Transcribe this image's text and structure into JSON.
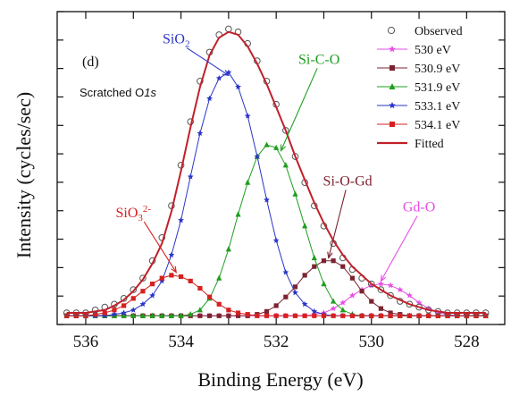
{
  "chart_data": {
    "type": "line",
    "panel_label": "(d)",
    "panel_subtitle": {
      "main": "Scratched O",
      "italic": "1s"
    },
    "xlabel": "Binding Energy (eV)",
    "ylabel": "Intensity (cycles/sec)",
    "xlim": [
      536.6,
      527.2
    ],
    "ylim": [
      -0.03,
      1.05
    ],
    "x_reversed": true,
    "xticks": [
      536,
      535,
      534,
      533,
      532,
      531,
      530,
      529,
      528
    ],
    "xtick_labels": [
      "536",
      "",
      "534",
      "",
      "532",
      "",
      "530",
      "",
      "528"
    ],
    "grid": false,
    "legend_position": "top-right",
    "colors": {
      "observed": "#555555",
      "530": "#e64ee6",
      "530_9": "#7b2330",
      "531_9": "#1f9e1f",
      "533_1": "#2a35c8",
      "534_1": "#d62020",
      "fitted": "#c0202a"
    },
    "observed": {
      "name": "Observed",
      "x": [
        536.4,
        536.2,
        536.0,
        535.8,
        535.6,
        535.4,
        535.2,
        535.0,
        534.8,
        534.6,
        534.4,
        534.2,
        534.0,
        533.8,
        533.6,
        533.4,
        533.2,
        533.0,
        532.8,
        532.6,
        532.4,
        532.2,
        532.0,
        531.8,
        531.6,
        531.4,
        531.2,
        531.0,
        530.8,
        530.6,
        530.4,
        530.2,
        530.0,
        529.8,
        529.6,
        529.4,
        529.2,
        529.0,
        528.8,
        528.6,
        528.4,
        528.2,
        528.0,
        527.8,
        527.6
      ],
      "y": [
        0.01,
        0.01,
        0.01,
        0.02,
        0.03,
        0.04,
        0.06,
        0.09,
        0.13,
        0.19,
        0.27,
        0.38,
        0.52,
        0.67,
        0.81,
        0.91,
        0.97,
        0.99,
        0.98,
        0.94,
        0.88,
        0.81,
        0.73,
        0.64,
        0.55,
        0.46,
        0.38,
        0.31,
        0.25,
        0.2,
        0.16,
        0.13,
        0.11,
        0.09,
        0.07,
        0.05,
        0.04,
        0.03,
        0.02,
        0.015,
        0.01,
        0.01,
        0.01,
        0.01,
        0.01
      ]
    },
    "series": [
      {
        "name": "530 eV",
        "marker": "star",
        "x": [
          536.4,
          536.2,
          536.0,
          535.8,
          535.6,
          535.4,
          535.2,
          535.0,
          534.8,
          534.6,
          534.4,
          534.2,
          534.0,
          533.8,
          533.6,
          533.4,
          533.2,
          533.0,
          532.8,
          532.6,
          532.4,
          532.2,
          532.0,
          531.8,
          531.6,
          531.4,
          531.2,
          531.0,
          530.8,
          530.6,
          530.4,
          530.2,
          530.0,
          529.8,
          529.6,
          529.4,
          529.2,
          529.0,
          528.8,
          528.6,
          528.4,
          528.2,
          528.0,
          527.8,
          527.6
        ],
        "y": [
          0.0,
          0.0,
          0.0,
          0.0,
          0.0,
          0.0,
          0.0,
          0.0,
          0.0,
          0.0,
          0.0,
          0.0,
          0.0,
          0.0,
          0.0,
          0.0,
          0.0,
          0.0,
          0.0,
          0.0,
          0.0,
          0.0,
          0.0,
          0.0,
          0.0,
          0.0,
          0.005,
          0.01,
          0.025,
          0.045,
          0.07,
          0.09,
          0.105,
          0.11,
          0.105,
          0.09,
          0.07,
          0.045,
          0.025,
          0.01,
          0.005,
          0.0,
          0.0,
          0.0,
          0.0
        ]
      },
      {
        "name": "530.9 eV",
        "marker": "square",
        "x": [
          536.4,
          536.2,
          536.0,
          535.8,
          535.6,
          535.4,
          535.2,
          535.0,
          534.8,
          534.6,
          534.4,
          534.2,
          534.0,
          533.8,
          533.6,
          533.4,
          533.2,
          533.0,
          532.8,
          532.6,
          532.4,
          532.2,
          532.0,
          531.8,
          531.6,
          531.4,
          531.2,
          531.0,
          530.8,
          530.6,
          530.4,
          530.2,
          530.0,
          529.8,
          529.6,
          529.4,
          529.2,
          529.0,
          528.8,
          528.6,
          528.4,
          528.2,
          528.0,
          527.8,
          527.6
        ],
        "y": [
          0.0,
          0.0,
          0.0,
          0.0,
          0.0,
          0.0,
          0.0,
          0.0,
          0.0,
          0.0,
          0.0,
          0.0,
          0.0,
          0.0,
          0.0,
          0.0,
          0.0,
          0.0,
          0.0,
          0.0,
          0.005,
          0.015,
          0.035,
          0.065,
          0.1,
          0.14,
          0.17,
          0.19,
          0.19,
          0.17,
          0.13,
          0.085,
          0.05,
          0.025,
          0.01,
          0.005,
          0.0,
          0.0,
          0.0,
          0.0,
          0.0,
          0.0,
          0.0,
          0.0,
          0.0
        ]
      },
      {
        "name": "531.9 eV",
        "marker": "triangle",
        "x": [
          536.4,
          536.2,
          536.0,
          535.8,
          535.6,
          535.4,
          535.2,
          535.0,
          534.8,
          534.6,
          534.4,
          534.2,
          534.0,
          533.8,
          533.6,
          533.4,
          533.2,
          533.0,
          532.8,
          532.6,
          532.4,
          532.2,
          532.0,
          531.8,
          531.6,
          531.4,
          531.2,
          531.0,
          530.8,
          530.6,
          530.4,
          530.2,
          530.0,
          529.8,
          529.6,
          529.4,
          529.2,
          529.0,
          528.8,
          528.6,
          528.4,
          528.2,
          528.0,
          527.8,
          527.6
        ],
        "y": [
          0.0,
          0.0,
          0.0,
          0.0,
          0.0,
          0.0,
          0.0,
          0.0,
          0.0,
          0.0,
          0.0,
          0.0,
          0.0,
          0.005,
          0.02,
          0.06,
          0.13,
          0.23,
          0.35,
          0.46,
          0.55,
          0.59,
          0.58,
          0.52,
          0.42,
          0.31,
          0.2,
          0.11,
          0.05,
          0.02,
          0.005,
          0.0,
          0.0,
          0.0,
          0.0,
          0.0,
          0.0,
          0.0,
          0.0,
          0.0,
          0.0,
          0.0,
          0.0,
          0.0,
          0.0
        ]
      },
      {
        "name": "533.1 eV",
        "marker": "star",
        "x": [
          536.4,
          536.2,
          536.0,
          535.8,
          535.6,
          535.4,
          535.2,
          535.0,
          534.8,
          534.6,
          534.4,
          534.2,
          534.0,
          533.8,
          533.6,
          533.4,
          533.2,
          533.0,
          532.8,
          532.6,
          532.4,
          532.2,
          532.0,
          531.8,
          531.6,
          531.4,
          531.2,
          531.0,
          530.8,
          530.6,
          530.4,
          530.2,
          530.0,
          529.8,
          529.6,
          529.4,
          529.2,
          529.0,
          528.8,
          528.6,
          528.4,
          528.2,
          528.0,
          527.8,
          527.6
        ],
        "y": [
          0.0,
          0.0,
          0.0,
          0.0,
          0.0,
          0.005,
          0.01,
          0.02,
          0.04,
          0.07,
          0.12,
          0.21,
          0.33,
          0.48,
          0.63,
          0.75,
          0.82,
          0.84,
          0.79,
          0.69,
          0.55,
          0.4,
          0.26,
          0.15,
          0.08,
          0.04,
          0.015,
          0.005,
          0.0,
          0.0,
          0.0,
          0.0,
          0.0,
          0.0,
          0.0,
          0.0,
          0.0,
          0.0,
          0.0,
          0.0,
          0.0,
          0.0,
          0.0,
          0.0,
          0.0
        ]
      },
      {
        "name": "534.1 eV",
        "marker": "square",
        "x": [
          536.4,
          536.2,
          536.0,
          535.8,
          535.6,
          535.4,
          535.2,
          535.0,
          534.8,
          534.6,
          534.4,
          534.2,
          534.0,
          533.8,
          533.6,
          533.4,
          533.2,
          533.0,
          532.8,
          532.6,
          532.4,
          532.2,
          532.0,
          531.8,
          531.6,
          531.4,
          531.2,
          531.0,
          530.8,
          530.6,
          530.4,
          530.2,
          530.0,
          529.8,
          529.6,
          529.4,
          529.2,
          529.0,
          528.8,
          528.6,
          528.4,
          528.2,
          528.0,
          527.8,
          527.6
        ],
        "y": [
          0.0,
          0.0,
          0.0,
          0.005,
          0.01,
          0.02,
          0.035,
          0.06,
          0.085,
          0.11,
          0.13,
          0.14,
          0.135,
          0.12,
          0.095,
          0.065,
          0.04,
          0.02,
          0.01,
          0.005,
          0.0,
          0.0,
          0.0,
          0.0,
          0.0,
          0.0,
          0.0,
          0.0,
          0.0,
          0.0,
          0.0,
          0.0,
          0.0,
          0.0,
          0.0,
          0.0,
          0.0,
          0.0,
          0.0,
          0.0,
          0.0,
          0.0,
          0.0,
          0.0,
          0.0
        ]
      }
    ],
    "fitted": {
      "name": "Fitted",
      "x": [
        536.4,
        536.2,
        536.0,
        535.8,
        535.6,
        535.4,
        535.2,
        535.0,
        534.8,
        534.6,
        534.4,
        534.2,
        534.0,
        533.8,
        533.6,
        533.4,
        533.2,
        533.0,
        532.8,
        532.6,
        532.4,
        532.2,
        532.0,
        531.8,
        531.6,
        531.4,
        531.2,
        531.0,
        530.8,
        530.6,
        530.4,
        530.2,
        530.0,
        529.8,
        529.6,
        529.4,
        529.2,
        529.0,
        528.8,
        528.6,
        528.4,
        528.2,
        528.0,
        527.8,
        527.6
      ],
      "y": [
        0.01,
        0.01,
        0.01,
        0.015,
        0.02,
        0.035,
        0.055,
        0.085,
        0.125,
        0.18,
        0.25,
        0.36,
        0.5,
        0.65,
        0.79,
        0.9,
        0.96,
        0.98,
        0.97,
        0.93,
        0.87,
        0.8,
        0.72,
        0.64,
        0.55,
        0.47,
        0.39,
        0.32,
        0.26,
        0.21,
        0.17,
        0.14,
        0.11,
        0.09,
        0.07,
        0.055,
        0.04,
        0.03,
        0.02,
        0.015,
        0.01,
        0.01,
        0.01,
        0.01,
        0.01
      ]
    },
    "annotations": [
      {
        "text": "SiO",
        "sub": "2",
        "sup": "",
        "color": "#2a35c8",
        "at_x": 534.1,
        "at_y": 0.94,
        "arrow_to": [
          533.0,
          0.83
        ]
      },
      {
        "text": "Si-C-O",
        "sub": "",
        "sup": "",
        "color": "#1f9e1f",
        "at_x": 531.1,
        "at_y": 0.87,
        "arrow_to": [
          531.9,
          0.57
        ]
      },
      {
        "text": "Si-O-Gd",
        "sub": "",
        "sup": "",
        "color": "#7b2330",
        "at_x": 530.5,
        "at_y": 0.45,
        "arrow_to": [
          530.9,
          0.2
        ]
      },
      {
        "text": "Gd-O",
        "sub": "",
        "sup": "",
        "color": "#e64ee6",
        "at_x": 529.0,
        "at_y": 0.36,
        "arrow_to": [
          529.8,
          0.12
        ]
      },
      {
        "text": "SiO",
        "sub": "3",
        "sup": "2-",
        "color": "#d62020",
        "at_x": 535.0,
        "at_y": 0.34,
        "arrow_to": [
          534.1,
          0.15
        ]
      }
    ]
  }
}
